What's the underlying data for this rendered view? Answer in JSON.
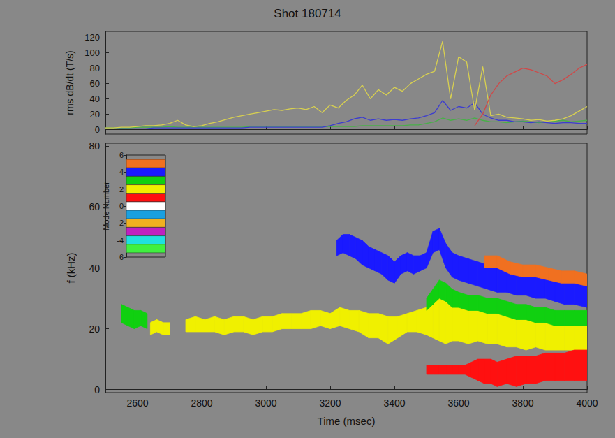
{
  "chart_data": [
    {
      "type": "line",
      "title": "Shot 180714",
      "ylabel": "rms dB/dt (T/s)",
      "x": [
        2500,
        2525,
        2550,
        2575,
        2600,
        2625,
        2650,
        2675,
        2700,
        2725,
        2750,
        2775,
        2800,
        2825,
        2850,
        2875,
        2900,
        2925,
        2950,
        2975,
        3000,
        3025,
        3050,
        3075,
        3100,
        3125,
        3150,
        3175,
        3200,
        3225,
        3250,
        3275,
        3300,
        3325,
        3350,
        3375,
        3400,
        3425,
        3450,
        3475,
        3500,
        3525,
        3550,
        3575,
        3600,
        3625,
        3650,
        3675,
        3700,
        3725,
        3750,
        3775,
        3800,
        3825,
        3850,
        3875,
        3900,
        3925,
        3950,
        3975,
        4000
      ],
      "xlim": [
        2500,
        4000
      ],
      "xticks": [
        2600,
        2800,
        3000,
        3200,
        3400,
        3600,
        3800,
        4000
      ],
      "ylim": [
        -6,
        128
      ],
      "yticks": [
        0,
        20,
        40,
        60,
        80,
        100,
        120
      ],
      "tick_labels": "y",
      "series": [
        {
          "color": "#48b048",
          "values": [
            2,
            2,
            2,
            2,
            3,
            3,
            3,
            3,
            4,
            3,
            3,
            3,
            3,
            3,
            3,
            3,
            3,
            3,
            4,
            4,
            4,
            4,
            4,
            4,
            4,
            4,
            4,
            4,
            4,
            4,
            4,
            4,
            5,
            5,
            5,
            5,
            5,
            5,
            6,
            6,
            8,
            10,
            15,
            12,
            14,
            12,
            15,
            12,
            10,
            10,
            9,
            10,
            11,
            10,
            9,
            10,
            11,
            12,
            10,
            11,
            12
          ]
        },
        {
          "color": "#3c3cd0",
          "values": [
            1,
            1,
            1,
            1,
            1,
            1,
            2,
            2,
            2,
            2,
            2,
            2,
            2,
            2,
            2,
            2,
            2,
            2,
            3,
            3,
            3,
            3,
            3,
            3,
            3,
            3,
            3,
            3,
            5,
            8,
            10,
            14,
            16,
            12,
            14,
            12,
            13,
            12,
            14,
            15,
            18,
            22,
            38,
            25,
            30,
            28,
            35,
            20,
            15,
            12,
            12,
            10,
            10,
            9,
            10,
            9,
            8,
            9,
            9,
            8,
            8
          ]
        },
        {
          "color": "#d8d050",
          "values": [
            2,
            2,
            3,
            3,
            4,
            5,
            5,
            6,
            8,
            12,
            6,
            4,
            5,
            8,
            10,
            13,
            16,
            18,
            20,
            22,
            24,
            26,
            25,
            27,
            28,
            26,
            30,
            22,
            32,
            28,
            38,
            45,
            58,
            40,
            52,
            45,
            55,
            50,
            60,
            66,
            72,
            76,
            115,
            40,
            95,
            88,
            25,
            82,
            18,
            20,
            16,
            15,
            14,
            12,
            13,
            11,
            12,
            14,
            18,
            24,
            30
          ]
        },
        {
          "color": "#d04848",
          "values": [
            null,
            null,
            null,
            null,
            null,
            null,
            null,
            null,
            null,
            null,
            null,
            null,
            null,
            null,
            null,
            null,
            null,
            null,
            null,
            null,
            null,
            null,
            null,
            null,
            null,
            null,
            null,
            null,
            null,
            null,
            null,
            null,
            null,
            null,
            null,
            null,
            null,
            null,
            null,
            null,
            null,
            null,
            null,
            null,
            null,
            null,
            5,
            20,
            45,
            60,
            70,
            75,
            80,
            78,
            74,
            70,
            60,
            65,
            72,
            80,
            85
          ]
        }
      ]
    },
    {
      "type": "band",
      "xlabel": "Time (msec)",
      "ylabel": "f (kHz)",
      "xlim": [
        2500,
        4000
      ],
      "xticks": [
        2600,
        2800,
        3000,
        3200,
        3400,
        3600,
        3800,
        4000
      ],
      "ylim": [
        -1,
        81
      ],
      "yticks": [
        0,
        20,
        40,
        60,
        80
      ],
      "series": [
        {
          "mode": 2,
          "x": [
            2640,
            2660,
            2680,
            2700,
            2720,
            2750,
            2780,
            2810,
            2840,
            2870,
            2900,
            2930,
            2960,
            2990,
            3020,
            3050,
            3080,
            3110,
            3140,
            3170,
            3200,
            3230,
            3260,
            3290,
            3320,
            3350,
            3380,
            3410,
            3440,
            3470,
            3500,
            3520,
            3540,
            3560,
            3580,
            3600,
            3630,
            3660,
            3690,
            3720,
            3750,
            3780,
            3810,
            3840,
            3870,
            3900,
            3930,
            3960,
            4000
          ],
          "low": [
            18,
            19,
            18,
            18,
            null,
            19,
            19,
            19,
            19,
            18,
            19,
            19,
            18,
            19,
            19,
            20,
            20,
            20,
            20,
            21,
            20,
            21,
            20,
            19,
            17,
            17,
            15,
            17,
            19,
            19,
            18,
            17,
            16,
            15,
            16,
            16,
            15,
            16,
            15,
            15,
            14,
            14,
            13,
            14,
            13,
            13,
            13,
            13,
            13
          ],
          "high": [
            22,
            23,
            22,
            22,
            null,
            23,
            24,
            23,
            24,
            23,
            24,
            24,
            23,
            24,
            24,
            25,
            25,
            25,
            26,
            26,
            25,
            27,
            26,
            26,
            25,
            25,
            24,
            24,
            25,
            26,
            27,
            28,
            30,
            29,
            27,
            27,
            26,
            26,
            25,
            25,
            24,
            23,
            23,
            22,
            22,
            21,
            21,
            21,
            21
          ]
        },
        {
          "mode": 3,
          "x": [
            2550,
            2570,
            2590,
            2610,
            2630,
            2650,
            3500,
            3520,
            3540,
            3560,
            3580,
            3600,
            3630,
            3660,
            3690,
            3720,
            3750,
            3780,
            3810,
            3840,
            3870,
            3900,
            3930,
            3960,
            4000
          ],
          "low": [
            22,
            21,
            20,
            21,
            20,
            null,
            26,
            28,
            30,
            29,
            27,
            27,
            26,
            26,
            25,
            25,
            24,
            23,
            23,
            22,
            22,
            21,
            21,
            21,
            21
          ],
          "high": [
            28,
            27,
            26,
            26,
            25,
            null,
            30,
            33,
            36,
            35,
            33,
            32,
            31,
            31,
            30,
            30,
            29,
            28,
            28,
            27,
            27,
            26,
            26,
            26,
            26
          ]
        },
        {
          "mode": 1,
          "x": [
            3500,
            3520,
            3540,
            3560,
            3580,
            3600,
            3620,
            3640,
            3660,
            3680,
            3700,
            3720,
            3750,
            3780,
            3810,
            3840,
            3870,
            3900,
            3930,
            3960,
            4000
          ],
          "low": [
            5,
            5,
            5,
            5,
            5,
            5,
            5,
            4,
            3,
            2,
            2,
            1,
            2,
            1,
            2,
            2,
            3,
            3,
            3,
            3,
            3
          ],
          "high": [
            8,
            8,
            8,
            8,
            8,
            8,
            8,
            9,
            10,
            10,
            10,
            9,
            10,
            11,
            11,
            11,
            12,
            12,
            12,
            13,
            13
          ]
        },
        {
          "mode": 4,
          "x": [
            3220,
            3240,
            3260,
            3280,
            3300,
            3320,
            3340,
            3360,
            3380,
            3400,
            3420,
            3440,
            3460,
            3480,
            3500,
            3520,
            3540,
            3560,
            3580,
            3600,
            3630,
            3660,
            3690,
            3720,
            3750,
            3780,
            3810,
            3840,
            3870,
            3900,
            3930,
            3960,
            4000
          ],
          "low": [
            44,
            45,
            44,
            43,
            41,
            40,
            39,
            38,
            36,
            35,
            38,
            39,
            38,
            39,
            40,
            45,
            46,
            40,
            37,
            36,
            35,
            34,
            33,
            32,
            32,
            31,
            31,
            30,
            30,
            29,
            28,
            28,
            27
          ],
          "high": [
            49,
            51,
            51,
            50,
            49,
            47,
            46,
            45,
            44,
            42,
            44,
            45,
            44,
            44,
            45,
            52,
            53,
            48,
            45,
            44,
            43,
            42,
            41,
            40,
            39,
            38,
            38,
            37,
            37,
            36,
            35,
            35,
            34
          ]
        },
        {
          "mode": 5,
          "x": [
            3680,
            3720,
            3760,
            3800,
            3840,
            3880,
            3920,
            3960,
            4000
          ],
          "low": [
            40,
            40,
            38,
            37,
            37,
            36,
            35,
            35,
            34
          ],
          "high": [
            44,
            44,
            42,
            41,
            41,
            40,
            39,
            39,
            38
          ]
        }
      ],
      "colorbar": {
        "label": "Mode Number",
        "ylim": [
          -6,
          6
        ],
        "yticks": [
          -6,
          -4,
          -2,
          0,
          2,
          4,
          6
        ],
        "modes": [
          5,
          4,
          3,
          2,
          1,
          0,
          -1,
          -2,
          -3,
          -4,
          -5
        ],
        "colors": [
          "#f07020",
          "#1a1aff",
          "#10d010",
          "#f0f000",
          "#ff1010",
          "#ffffff",
          "#1aa0e0",
          "#f0b020",
          "#c020c0",
          "#20e0e0",
          "#40f040"
        ]
      }
    }
  ]
}
